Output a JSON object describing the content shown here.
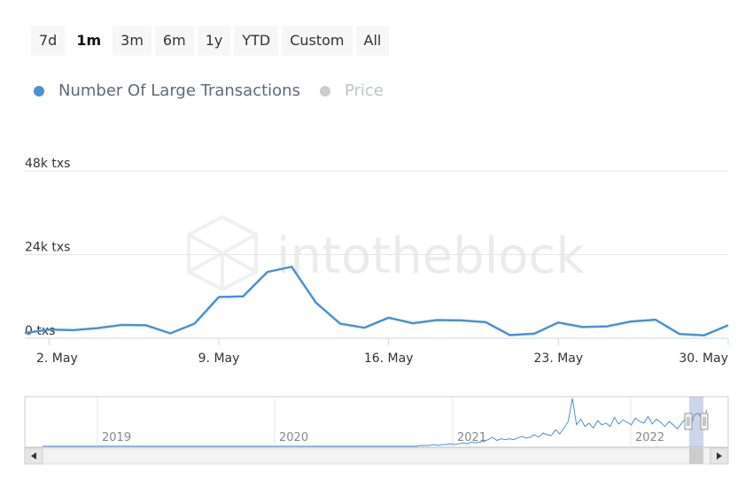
{
  "range_buttons": [
    {
      "label": "7d",
      "active": false
    },
    {
      "label": "1m",
      "active": true
    },
    {
      "label": "3m",
      "active": false
    },
    {
      "label": "6m",
      "active": false
    },
    {
      "label": "1y",
      "active": false
    },
    {
      "label": "YTD",
      "active": false
    },
    {
      "label": "Custom",
      "active": false
    },
    {
      "label": "All",
      "active": false
    }
  ],
  "legend": [
    {
      "label": "Number Of Large Transactions",
      "color": "#4a90d9",
      "label_color": "#5f6b7a"
    },
    {
      "label": "Price",
      "color": "#cccccc",
      "label_color": "#c0c4c8"
    }
  ],
  "watermark": "intotheblock",
  "chart_data": {
    "type": "line",
    "title": "",
    "series": [
      {
        "name": "Number Of Large Transactions",
        "color": "#4a90d9"
      }
    ],
    "x_start_day": 1,
    "values": [
      1500,
      2500,
      2300,
      2900,
      3800,
      3700,
      1400,
      4200,
      11800,
      12000,
      19000,
      20500,
      10200,
      4200,
      3000,
      5900,
      4300,
      5200,
      5100,
      4600,
      900,
      1300,
      4500,
      3200,
      3400,
      4800,
      5300,
      1200,
      800,
      3700
    ],
    "y_ticks": [
      {
        "value": 0,
        "label": "0 txs"
      },
      {
        "value": 24000,
        "label": "24k txs"
      },
      {
        "value": 48000,
        "label": "48k txs"
      }
    ],
    "ylim": [
      0,
      48000
    ],
    "x_ticks": [
      {
        "day": 2,
        "label": "2. May"
      },
      {
        "day": 9,
        "label": "9. May"
      },
      {
        "day": 16,
        "label": "16. May"
      },
      {
        "day": 23,
        "label": "23. May"
      },
      {
        "day": 30,
        "label": "30. May"
      }
    ],
    "xlim": [
      1,
      30
    ],
    "grid": true
  },
  "navigator": {
    "year_labels": [
      "2019",
      "2020",
      "2021",
      "2022"
    ],
    "series": [
      0,
      0,
      0,
      0,
      0,
      0,
      0,
      0,
      0,
      0,
      0,
      0,
      0,
      0,
      0,
      0,
      0,
      0,
      0,
      0,
      0,
      0,
      0,
      0,
      0,
      0,
      0,
      0,
      0,
      0,
      0,
      0,
      0,
      0,
      0,
      0,
      0,
      0,
      0,
      0,
      0,
      0,
      0,
      0,
      0,
      0,
      0,
      0,
      0,
      0,
      0,
      0,
      0,
      0,
      0,
      0,
      0,
      0,
      0,
      0,
      0,
      0,
      0,
      0,
      0,
      0,
      0,
      0,
      0,
      0,
      0,
      0,
      0,
      0,
      0,
      0,
      0,
      0,
      0,
      0,
      0,
      0,
      0,
      0,
      0,
      0,
      0,
      0,
      0,
      0,
      1,
      1,
      1,
      2,
      1,
      2,
      2,
      3,
      2,
      3,
      4,
      3,
      5,
      4,
      5,
      6,
      8,
      11,
      7,
      9,
      8,
      9,
      8,
      10,
      12,
      10,
      11,
      14,
      11,
      16,
      14,
      13,
      20,
      15,
      22,
      30,
      58,
      26,
      33,
      24,
      28,
      22,
      31,
      26,
      28,
      24,
      35,
      27,
      32,
      29,
      26,
      34,
      30,
      28,
      36,
      27,
      33,
      29,
      24,
      30,
      26,
      21,
      28,
      34,
      22,
      38,
      40,
      31,
      44
    ]
  }
}
